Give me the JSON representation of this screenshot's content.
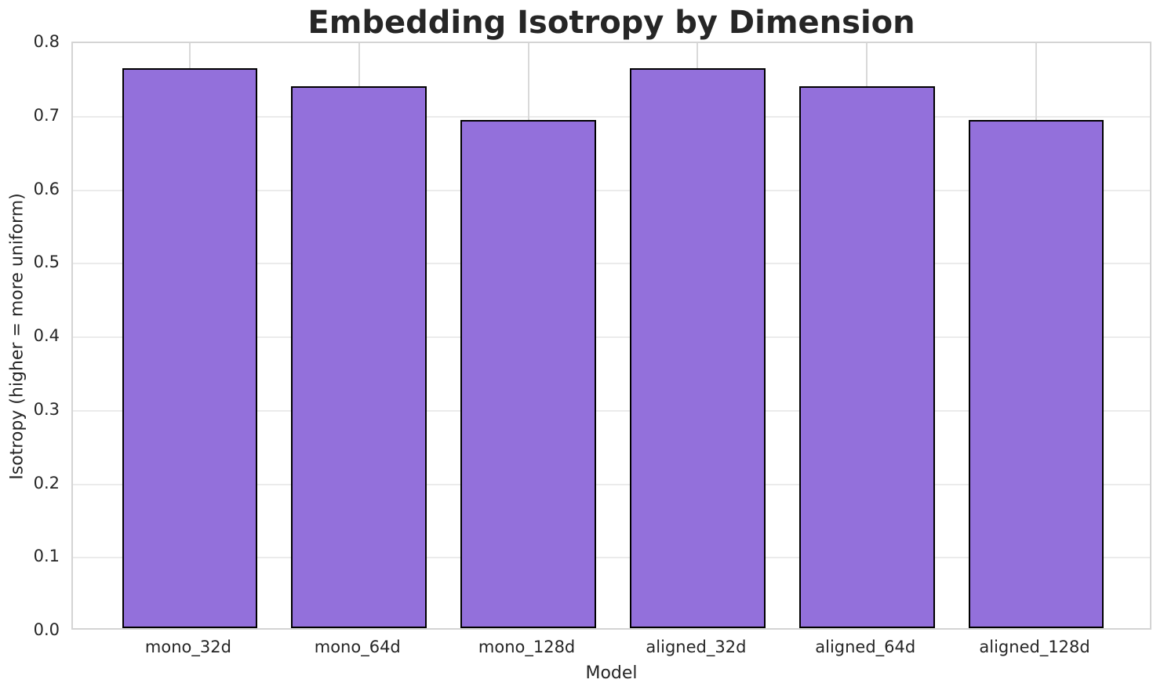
{
  "chart_data": {
    "type": "bar",
    "title": "Embedding Isotropy by Dimension",
    "xlabel": "Model",
    "ylabel": "Isotropy (higher = more uniform)",
    "categories": [
      "mono_32d",
      "mono_64d",
      "mono_128d",
      "aligned_32d",
      "aligned_64d",
      "aligned_128d"
    ],
    "values": [
      0.762,
      0.737,
      0.691,
      0.762,
      0.737,
      0.691
    ],
    "ylim": [
      0.0,
      0.8
    ],
    "yticks": [
      0.0,
      0.1,
      0.2,
      0.3,
      0.4,
      0.5,
      0.6,
      0.7,
      0.8
    ],
    "grid": true,
    "legend": null,
    "bar_color": "#9370DB",
    "bar_edge_color": "#000000",
    "text_color": "#262626",
    "grid_color_horizontal": "#ebebeb",
    "grid_color_vertical": "#d9d9d9",
    "spine_color": "#d4d4d4",
    "background_color": "#ffffff"
  }
}
